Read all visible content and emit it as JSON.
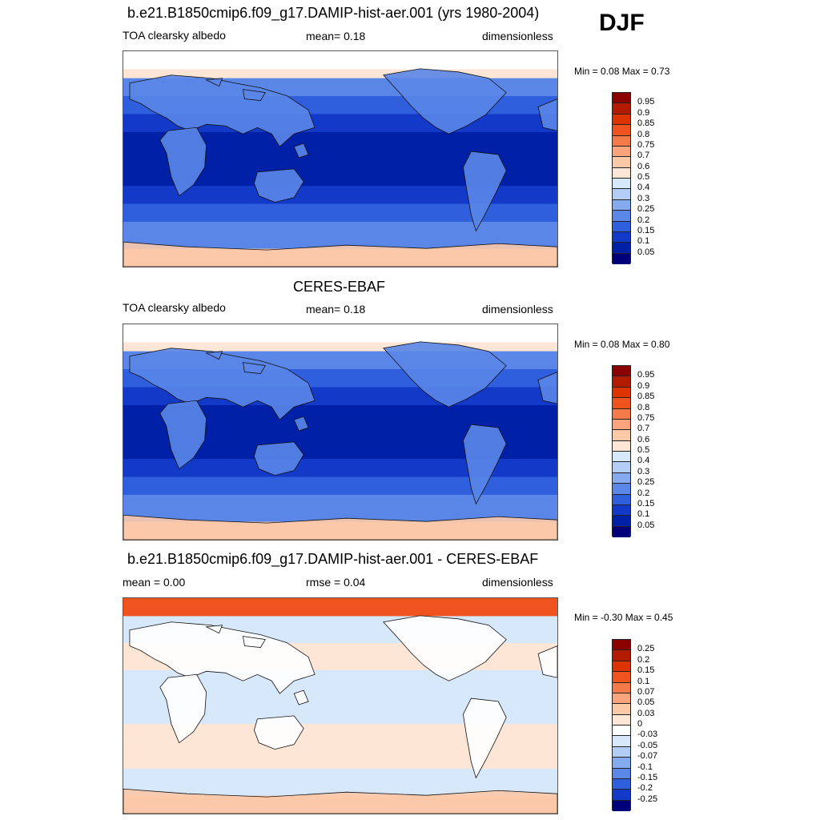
{
  "season": "DJF",
  "panels": [
    {
      "title": "b.e21.B1850cmip6.f09_g17.DAMIP-hist-aer.001 (yrs 1980-2004)",
      "left_label": "TOA clearsky albedo",
      "center_label": "mean=   0.18",
      "right_label": "dimensionless",
      "minmax": "Min =    0.08 Max =    0.73",
      "kind": "abs",
      "levels": [
        "0.95",
        "0.9",
        "0.85",
        "0.8",
        "0.75",
        "0.7",
        "0.6",
        "0.5",
        "0.4",
        "0.3",
        "0.25",
        "0.2",
        "0.15",
        "0.1",
        "0.05"
      ],
      "colors": [
        "#8b0000",
        "#b31b00",
        "#dd3300",
        "#f0541e",
        "#f57a4a",
        "#f9a47c",
        "#fbc8a8",
        "#fde6d6",
        "#d8e8fb",
        "#b3cdf6",
        "#86aaf0",
        "#5a86e8",
        "#2f5fdc",
        "#1239c8",
        "#0020a8",
        "#00007a"
      ]
    },
    {
      "title": "CERES-EBAF",
      "left_label": "TOA clearsky albedo",
      "center_label": "mean=   0.18",
      "right_label": "dimensionless",
      "minmax": "Min =    0.08 Max =    0.80",
      "kind": "abs",
      "levels": [
        "0.95",
        "0.9",
        "0.85",
        "0.8",
        "0.75",
        "0.7",
        "0.6",
        "0.5",
        "0.4",
        "0.3",
        "0.25",
        "0.2",
        "0.15",
        "0.1",
        "0.05"
      ],
      "colors": [
        "#8b0000",
        "#b31b00",
        "#dd3300",
        "#f0541e",
        "#f57a4a",
        "#f9a47c",
        "#fbc8a8",
        "#fde6d6",
        "#d8e8fb",
        "#b3cdf6",
        "#86aaf0",
        "#5a86e8",
        "#2f5fdc",
        "#1239c8",
        "#0020a8",
        "#00007a"
      ]
    },
    {
      "title": "b.e21.B1850cmip6.f09_g17.DAMIP-hist-aer.001 - CERES-EBAF",
      "left_label": "mean =    0.00",
      "center_label": "rmse =    0.04",
      "right_label": "dimensionless",
      "minmax": "Min =  -0.30 Max =    0.45",
      "kind": "diff",
      "levels": [
        "0.25",
        "0.2",
        "0.15",
        "0.1",
        "0.07",
        "0.05",
        "0.03",
        "0",
        "-0.03",
        "-0.05",
        "-0.07",
        "-0.1",
        "-0.15",
        "-0.2",
        "-0.25"
      ],
      "colors": [
        "#8b0000",
        "#b31b00",
        "#dd3300",
        "#f0541e",
        "#f57a4a",
        "#f9a47c",
        "#fbc8a8",
        "#fde6d6",
        "#ffffff",
        "#d8e8fb",
        "#b3cdf6",
        "#86aaf0",
        "#5a86e8",
        "#2f5fdc",
        "#1239c8",
        "#00007a"
      ]
    }
  ]
}
